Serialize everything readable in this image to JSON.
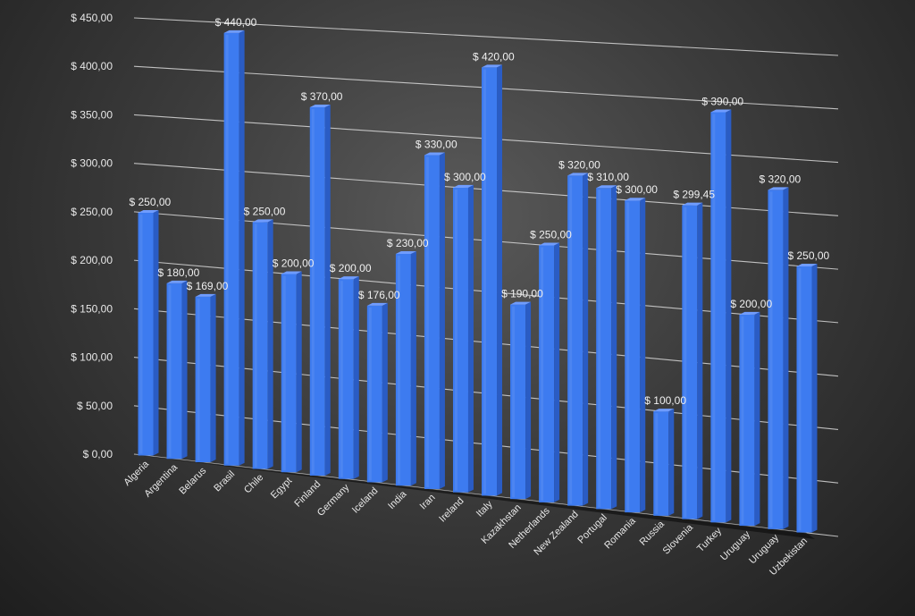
{
  "chart_data": {
    "type": "bar",
    "title": "",
    "xlabel": "",
    "ylabel": "",
    "ylim": [
      0,
      450
    ],
    "yticks": [
      0,
      50,
      100,
      150,
      200,
      250,
      300,
      350,
      400,
      450
    ],
    "ytick_labels": [
      "$ 0,00",
      "$ 50,00",
      "$ 100,00",
      "$ 150,00",
      "$ 200,00",
      "$ 250,00",
      "$ 300,00",
      "$ 350,00",
      "$ 400,00",
      "$ 450,00"
    ],
    "grid": true,
    "three_d": true,
    "bar_color": "#3d7bf0",
    "categories": [
      "Algeria",
      "Argentina",
      "Belarus",
      "Brasil",
      "Chile",
      "Egypt",
      "Finland",
      "Germany",
      "Iceland",
      "India",
      "Iran",
      "Ireland",
      "Italy",
      "Kazakhstan",
      "Netherlands",
      "New Zealand",
      "Portugal",
      "Romania",
      "Russia",
      "Slovenia",
      "Turkey",
      "Uruguay",
      "Uruguay",
      "Uzbekistan"
    ],
    "values": [
      250,
      180,
      169,
      440,
      250,
      200,
      370,
      200,
      176,
      230,
      330,
      300,
      420,
      190,
      250,
      320,
      310,
      300,
      100,
      299.45,
      390,
      200,
      320,
      250
    ],
    "value_labels": [
      "$ 250,00",
      "$ 180,00",
      "$ 169,00",
      "$ 440,00",
      "$ 250,00",
      "$ 200,00",
      "$ 370,00",
      "$ 200,00",
      "$ 176,00",
      "$ 230,00",
      "$ 330,00",
      "$ 300,00",
      "$ 420,00",
      "$ 190,00",
      "$ 250,00",
      "$ 320,00",
      "$ 310,00",
      "$ 300,00",
      "$ 100,00",
      "$ 299,45",
      "$ 390,00",
      "$ 200,00",
      "$ 320,00",
      "$ 250,00"
    ]
  }
}
